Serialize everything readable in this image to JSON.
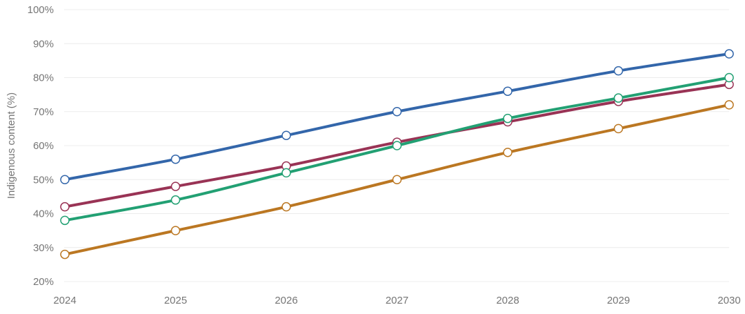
{
  "chart_data": {
    "type": "line",
    "title": "",
    "xlabel": "",
    "ylabel": "Indigenous content (%)",
    "x": [
      "2024",
      "2025",
      "2026",
      "2027",
      "2028",
      "2029",
      "2030"
    ],
    "ylim": [
      20,
      100
    ],
    "yticks": [
      "20%",
      "30%",
      "40%",
      "50%",
      "60%",
      "70%",
      "80%",
      "90%",
      "100%"
    ],
    "grid": true,
    "legend": "none",
    "series": [
      {
        "color": "#3366aa",
        "values": [
          50,
          56,
          63,
          70,
          76,
          82,
          87
        ]
      },
      {
        "color": "#993355",
        "values": [
          42,
          48,
          54,
          61,
          67,
          73,
          78
        ]
      },
      {
        "color": "#22a073",
        "values": [
          38,
          44,
          52,
          60,
          68,
          74,
          80
        ]
      },
      {
        "color": "#bb7722",
        "values": [
          28,
          35,
          42,
          50,
          58,
          65,
          72
        ]
      }
    ]
  }
}
